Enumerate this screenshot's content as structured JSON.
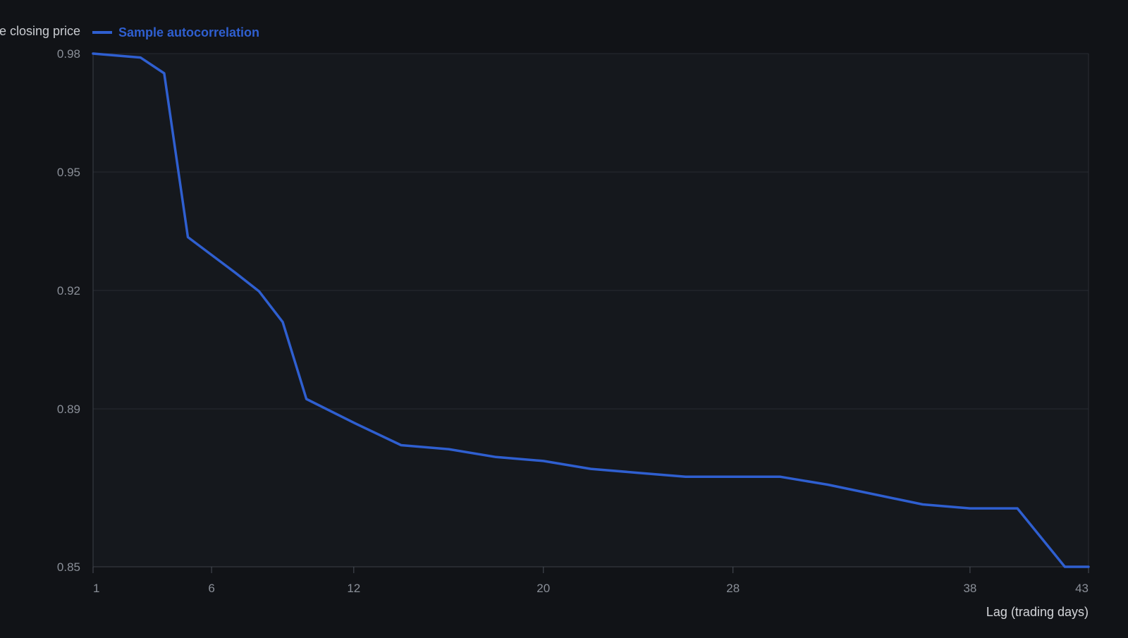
{
  "chart_data": {
    "type": "line",
    "title": "",
    "xlabel": "Lag (trading days)",
    "ylabel": "",
    "xlim": [
      1,
      43
    ],
    "ylim": [
      0.85,
      0.98
    ],
    "x_ticks": [
      1,
      6,
      12,
      20,
      28,
      38,
      43
    ],
    "y_ticks": [
      0.85,
      0.89,
      0.92,
      0.95,
      0.98
    ],
    "y_tick_labels": [
      "0.85",
      "0.89",
      "0.92",
      "0.95",
      "0.98"
    ],
    "grid": true,
    "legend_position": "top-left",
    "legend": [
      {
        "label": "e closing price",
        "color": "#c9ccd1",
        "has_swatch": false
      },
      {
        "label": "Sample autocorrelation",
        "color": "#2f5fd0",
        "has_swatch": true
      }
    ],
    "series": [
      {
        "name": "Sample autocorrelation",
        "color": "#2f5fd0",
        "x": [
          1,
          3,
          4,
          5,
          6,
          7,
          8,
          9,
          10,
          12,
          14,
          16,
          18,
          20,
          22,
          24,
          26,
          28,
          30,
          32,
          34,
          36,
          38,
          40,
          42,
          43
        ],
        "y": [
          0.98,
          0.979,
          0.975,
          0.9335,
          0.929,
          0.9245,
          0.9198,
          0.912,
          0.8925,
          0.8865,
          0.8808,
          0.8798,
          0.8778,
          0.8768,
          0.8748,
          0.8738,
          0.8728,
          0.8728,
          0.8728,
          0.8708,
          0.8683,
          0.8658,
          0.8648,
          0.8648,
          0.85,
          0.85
        ]
      }
    ]
  }
}
